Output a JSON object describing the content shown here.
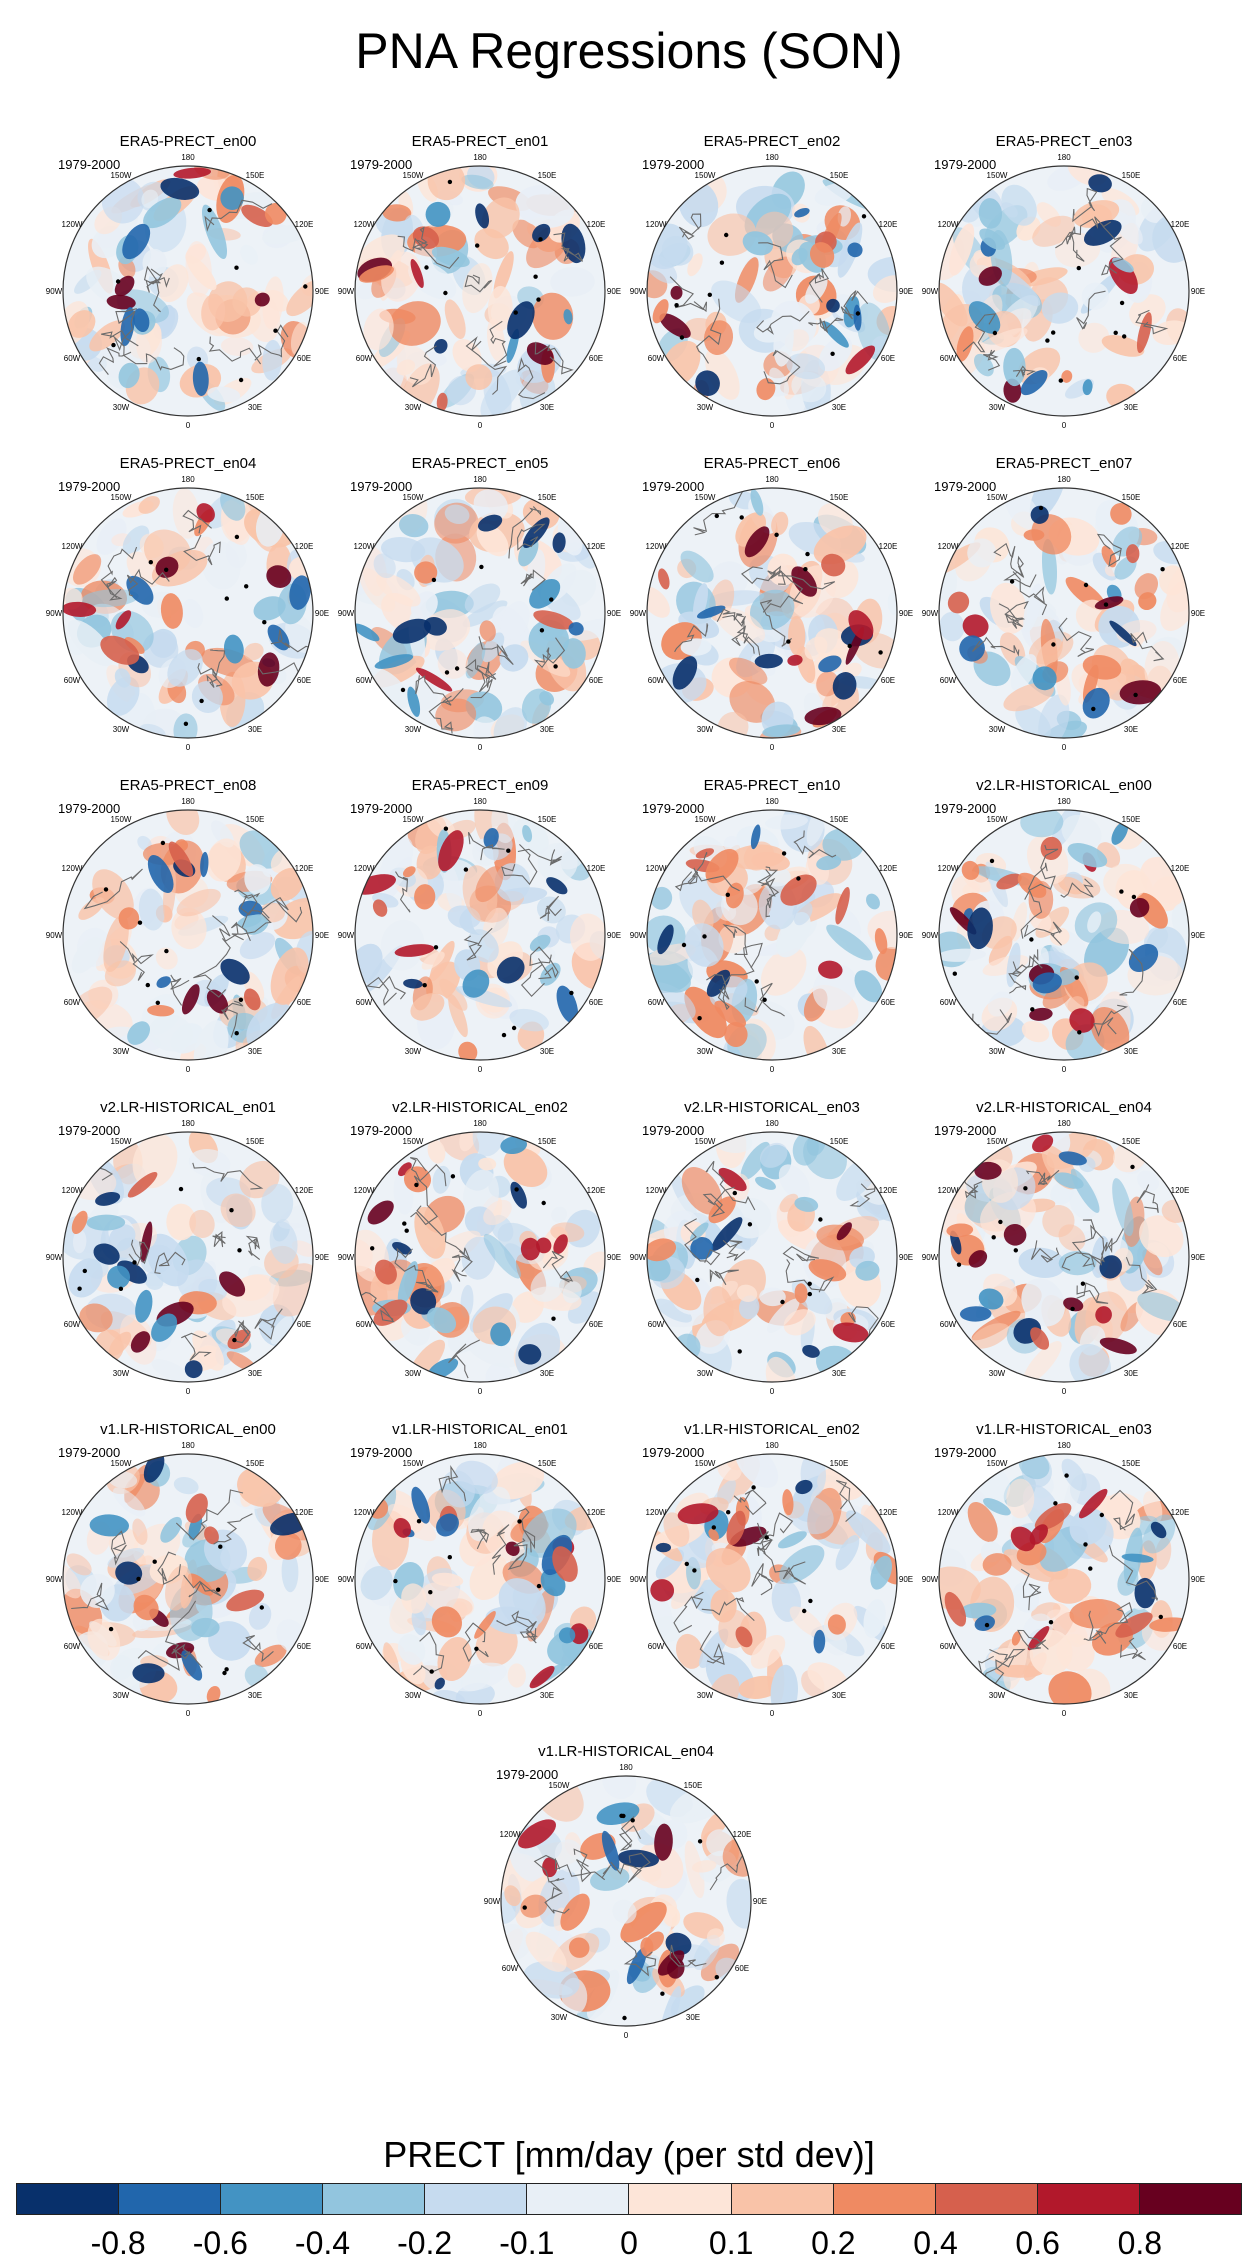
{
  "figure_title": "PNA Regressions (SON)",
  "period_label": "1979-2000",
  "lon_labels": [
    "180",
    "150E",
    "120E",
    "90E",
    "60E",
    "30E",
    "0",
    "30W",
    "60W",
    "90W",
    "120W",
    "150W"
  ],
  "panels": [
    {
      "title": "ERA5-PRECT_en00"
    },
    {
      "title": "ERA5-PRECT_en01"
    },
    {
      "title": "ERA5-PRECT_en02"
    },
    {
      "title": "ERA5-PRECT_en03"
    },
    {
      "title": "ERA5-PRECT_en04"
    },
    {
      "title": "ERA5-PRECT_en05"
    },
    {
      "title": "ERA5-PRECT_en06"
    },
    {
      "title": "ERA5-PRECT_en07"
    },
    {
      "title": "ERA5-PRECT_en08"
    },
    {
      "title": "ERA5-PRECT_en09"
    },
    {
      "title": "ERA5-PRECT_en10"
    },
    {
      "title": "v2.LR-HISTORICAL_en00"
    },
    {
      "title": "v2.LR-HISTORICAL_en01"
    },
    {
      "title": "v2.LR-HISTORICAL_en02"
    },
    {
      "title": "v2.LR-HISTORICAL_en03"
    },
    {
      "title": "v2.LR-HISTORICAL_en04"
    },
    {
      "title": "v1.LR-HISTORICAL_en00"
    },
    {
      "title": "v1.LR-HISTORICAL_en01"
    },
    {
      "title": "v1.LR-HISTORICAL_en02"
    },
    {
      "title": "v1.LR-HISTORICAL_en03"
    },
    {
      "title": "v1.LR-HISTORICAL_en04"
    }
  ],
  "colorbar": {
    "title": "PRECT [mm/day (per std dev)]",
    "colors": [
      "#08306b",
      "#2166ac",
      "#4393c3",
      "#92c5de",
      "#c6dbef",
      "#e8eff6",
      "#fde5d8",
      "#f9c3a8",
      "#ef8a62",
      "#d6604d",
      "#b2182b",
      "#67001f"
    ],
    "tick_labels": [
      "-0.8",
      "-0.6",
      "-0.4",
      "-0.2",
      "-0.1",
      "0",
      "0.1",
      "0.2",
      "0.4",
      "0.6",
      "0.8"
    ]
  }
}
